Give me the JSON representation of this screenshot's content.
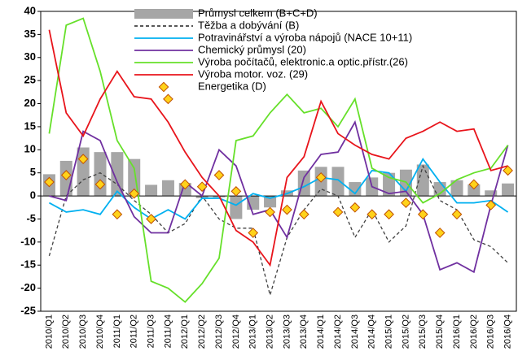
{
  "chart_data": {
    "type": "combo",
    "categories": [
      "2010/Q1",
      "2010/Q2",
      "2010/Q3",
      "2010/Q4",
      "2011/Q1",
      "2011/Q2",
      "2011/Q3",
      "2011/Q4",
      "2012/Q1",
      "2012/Q2",
      "2012/Q3",
      "2012/Q4",
      "2013/Q1",
      "2013/Q2",
      "2013/Q3",
      "2013/Q4",
      "2014/Q1",
      "2014/Q2",
      "2014/Q3",
      "2014/Q4",
      "2015/Q1",
      "2015/Q2",
      "2015/Q3",
      "2015/Q4",
      "2016/Q1",
      "2016/Q2",
      "2016/Q3",
      "2016/Q4"
    ],
    "ylim": [
      -25,
      40
    ],
    "yticks": [
      -25,
      -20,
      -15,
      -10,
      -5,
      0,
      5,
      10,
      15,
      20,
      25,
      30,
      35,
      40
    ],
    "grid": false,
    "legend": "top-center",
    "series": [
      {
        "name": "Průmysl celkem (B+C+D)",
        "type": "bar",
        "color": "#a6a6a6",
        "values": [
          4.7,
          7.6,
          10.5,
          9.5,
          9.5,
          8,
          2.4,
          3.4,
          2.8,
          -0.5,
          -0.3,
          -5,
          -3,
          -2.5,
          1.2,
          5.5,
          6.3,
          6.3,
          3,
          4,
          5,
          5.7,
          6.8,
          3,
          3.4,
          2.5,
          1.2,
          2.7
        ]
      },
      {
        "name": "Těžba  a dobývání (B)",
        "type": "line",
        "dash": true,
        "color": "#404040",
        "values": [
          -13,
          0,
          3.5,
          5,
          2.5,
          -1,
          -4,
          -8,
          -6,
          0,
          -5,
          -7,
          -7,
          -21.5,
          -9,
          -3,
          1.5,
          0,
          -9,
          -3,
          -10,
          -6.5,
          6.5,
          -1,
          -3,
          -9.5,
          -11,
          -14.5
        ]
      },
      {
        "name": "Potravinářství a výroba nápojů  (NACE 10+11)",
        "type": "line",
        "color": "#00b0f0",
        "values": [
          -1.5,
          -3.5,
          -3,
          -4,
          1,
          -2.5,
          -5,
          -3,
          -5,
          -0.5,
          -0.5,
          -2,
          0.5,
          -0.5,
          0.5,
          2,
          4,
          3.5,
          0.5,
          5.5,
          5,
          1,
          8,
          3,
          -1.5,
          -1.5,
          -1,
          -3.5
        ]
      },
      {
        "name": "Chemický průmysl (20)",
        "type": "line",
        "color": "#7030a0",
        "values": [
          0,
          -1,
          14,
          12,
          3,
          -4.5,
          -8,
          -8,
          3,
          0,
          10,
          6.5,
          -4,
          -3,
          -9,
          4,
          9,
          9.5,
          16,
          2,
          0.5,
          1,
          -4,
          -16,
          -14.5,
          -16.5,
          -2,
          11
        ]
      },
      {
        "name": "Výroba počítačů,  elektronic.a optic.přístr.(26)",
        "type": "line",
        "color": "#66e02a",
        "values": [
          13.5,
          37,
          38.5,
          27,
          12,
          6,
          -18.5,
          -20,
          -23,
          -19,
          -13.5,
          12,
          13,
          18,
          22,
          18,
          19,
          15,
          21,
          6,
          4,
          3,
          -1.5,
          0.5,
          3.5,
          5,
          6,
          11
        ]
      },
      {
        "name": "Výroba motor. voz. (29)",
        "type": "line",
        "color": "#e8141b",
        "values": [
          36,
          18,
          13,
          21,
          27,
          21.5,
          21,
          16,
          9.5,
          4,
          0,
          -7.5,
          -10,
          -15,
          4,
          8.5,
          20.5,
          13.5,
          11,
          9,
          8,
          12.5,
          14,
          16,
          14,
          14.5,
          5.5,
          6.5
        ]
      },
      {
        "name": "Energetika (D)",
        "type": "marker",
        "color": "#ffd21a",
        "values": [
          3,
          4.5,
          8,
          2.5,
          -4,
          0.5,
          -5,
          21,
          2.5,
          2,
          4.5,
          1,
          -8,
          -3.5,
          -3,
          -4,
          4,
          -3.5,
          -2.5,
          -4,
          -4,
          -1.5,
          -4,
          -8,
          -4,
          2.5,
          -2,
          5.5
        ]
      }
    ]
  }
}
